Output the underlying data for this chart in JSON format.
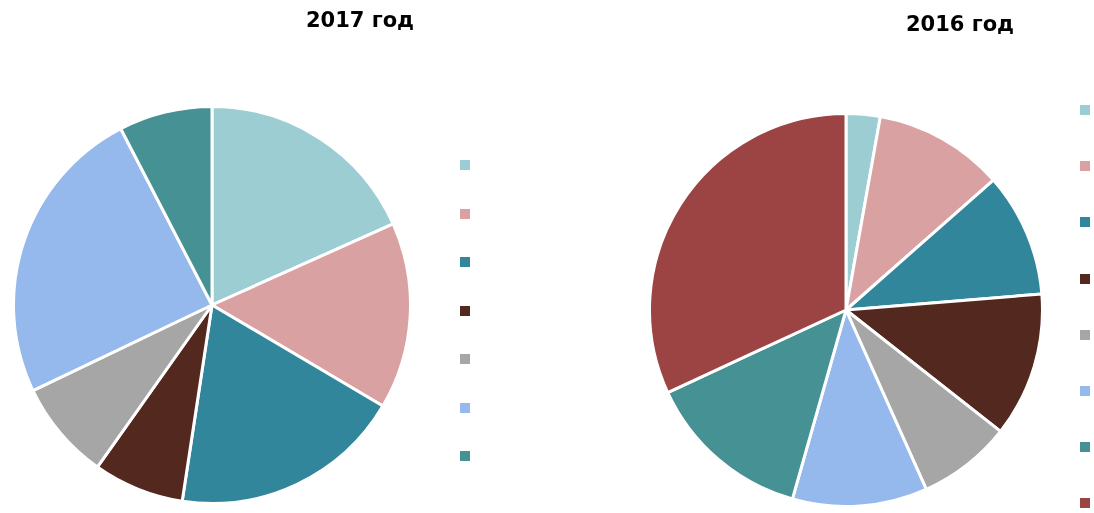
{
  "chart_data": [
    {
      "type": "pie",
      "title": "2017 год",
      "categories": [
        null,
        null,
        null,
        null,
        null,
        null,
        null
      ],
      "values": [
        18.3,
        15.2,
        18.9,
        7.4,
        8.1,
        24.5,
        7.6
      ],
      "colors": [
        "#9bcdd2",
        "#d9a1a2",
        "#31869b",
        "#53291f",
        "#a6a6a6",
        "#95b9ec",
        "#469193"
      ]
    },
    {
      "type": "pie",
      "title": "2016 год",
      "categories": [
        null,
        null,
        null,
        null,
        null,
        null,
        null,
        null
      ],
      "values": [
        2.8,
        10.7,
        10.2,
        11.9,
        7.7,
        11.1,
        13.7,
        31.9
      ],
      "colors": [
        "#9bcdd2",
        "#d9a1a2",
        "#31869b",
        "#53291f",
        "#a6a6a6",
        "#95b9ec",
        "#469193",
        "#9c4443"
      ]
    }
  ]
}
